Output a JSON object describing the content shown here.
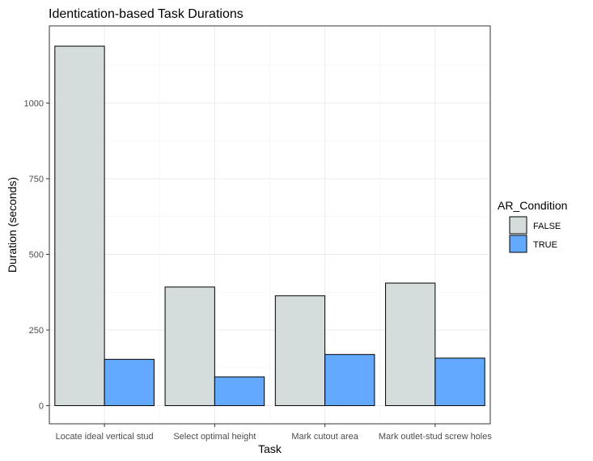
{
  "chart_data": {
    "type": "bar",
    "title": "Identication-based Task Durations",
    "xlabel": "Task",
    "ylabel": "Duration (seconds)",
    "categories": [
      "Locate ideal vertical stud",
      "Select optimal height",
      "Mark cutout area",
      "Mark outlet-stud screw holes"
    ],
    "series": [
      {
        "name": "FALSE",
        "color": "#d5dcdc",
        "values": [
          1188,
          392,
          363,
          405
        ]
      },
      {
        "name": "TRUE",
        "color": "#62a9ff",
        "values": [
          153,
          95,
          169,
          157
        ]
      }
    ],
    "ylim": [
      -60,
      1255
    ],
    "yticks": [
      0,
      250,
      500,
      750,
      1000
    ],
    "grid": true,
    "legend": {
      "title": "AR_Condition",
      "placement": "right"
    }
  }
}
